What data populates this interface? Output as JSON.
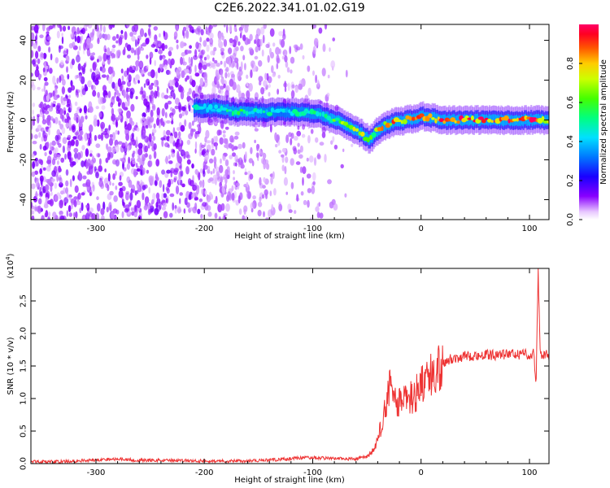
{
  "title": "C2E6.2022.341.01.02.G19",
  "colors": {
    "snr_line": "#ee3333",
    "axis": "#000000",
    "background": "#ffffff"
  },
  "chart_data": [
    {
      "type": "heatmap",
      "xlabel": "Height of straight line (km)",
      "ylabel": "Frequency (Hz)",
      "xlim": [
        -360,
        118
      ],
      "ylim": [
        -50,
        48
      ],
      "x_ticks": [
        -300,
        -200,
        -100,
        0,
        100
      ],
      "x_tick_labels": [
        "-300",
        "-200",
        "-100",
        "0",
        "100"
      ],
      "y_ticks": [
        -40,
        -20,
        0,
        20,
        40
      ],
      "y_tick_labels": [
        "-40",
        "-20",
        "0",
        "20",
        "40"
      ],
      "colorbar": {
        "label": "Normalized spectral amplitude",
        "range": [
          0,
          1
        ],
        "ticks": [
          0.0,
          0.2,
          0.4,
          0.6,
          0.8
        ],
        "tick_labels": [
          "0.0",
          "0.2",
          "0.4",
          "0.6",
          "0.8"
        ],
        "colormap": "rainbow (white-violet-blue-cyan-green-yellow-red-magenta)"
      },
      "ridge": {
        "x": [
          -210,
          -190,
          -170,
          -150,
          -130,
          -110,
          -95,
          -85,
          -75,
          -65,
          -55,
          -48,
          -42,
          -35,
          -25,
          -15,
          -5,
          0,
          10,
          20,
          40,
          60,
          80,
          100,
          110,
          118
        ],
        "y": [
          6,
          6,
          4,
          4,
          4,
          4,
          3,
          1,
          -1,
          -4,
          -7,
          -10,
          -6,
          -3,
          -1,
          0,
          1,
          2,
          1,
          0,
          0,
          0,
          0,
          0,
          0,
          0
        ],
        "amplitude": [
          0.45,
          0.5,
          0.55,
          0.5,
          0.45,
          0.5,
          0.5,
          0.55,
          0.65,
          0.75,
          0.75,
          0.6,
          0.7,
          0.85,
          0.85,
          0.8,
          0.9,
          0.9,
          0.9,
          0.95,
          0.95,
          0.95,
          0.95,
          0.95,
          0.9,
          0.85
        ]
      },
      "noise_extent_x": [
        -360,
        -80
      ],
      "grid": false
    },
    {
      "type": "line",
      "xlabel": "Height of straight line (km)",
      "ylabel": "SNR (10 * v/v)",
      "yscale_label": "(x10",
      "yscale_exponent": "4",
      "yscale_close": ")",
      "xlim": [
        -360,
        118
      ],
      "ylim": [
        0,
        3.0
      ],
      "x_ticks": [
        -300,
        -200,
        -100,
        0,
        100
      ],
      "x_tick_labels": [
        "-300",
        "-200",
        "-100",
        "0",
        "100"
      ],
      "y_ticks": [
        0.0,
        0.5,
        1.0,
        1.5,
        2.0,
        2.5
      ],
      "y_tick_labels": [
        "0.0",
        "0.5",
        "1.0",
        "1.5",
        "2.0",
        "2.5"
      ],
      "series": [
        {
          "x": [
            -360,
            -330,
            -300,
            -280,
            -260,
            -240,
            -200,
            -160,
            -130,
            -110,
            -100,
            -80,
            -60,
            -50,
            -42,
            -38,
            -34,
            -30,
            -26,
            -22,
            -18,
            -14,
            -10,
            -6,
            -2,
            0,
            5,
            10,
            15,
            20,
            25,
            30,
            40,
            50,
            60,
            70,
            80,
            90,
            100,
            104,
            106,
            108,
            110,
            112,
            118
          ],
          "y": [
            0.02,
            0.02,
            0.05,
            0.06,
            0.04,
            0.04,
            0.03,
            0.03,
            0.05,
            0.08,
            0.08,
            0.07,
            0.06,
            0.1,
            0.25,
            0.5,
            0.8,
            1.2,
            1.0,
            0.9,
            1.0,
            0.95,
            1.0,
            1.05,
            1.15,
            1.3,
            1.25,
            1.35,
            1.45,
            1.55,
            1.6,
            1.62,
            1.65,
            1.66,
            1.67,
            1.67,
            1.68,
            1.68,
            1.68,
            1.7,
            1.2,
            2.95,
            1.65,
            1.7,
            1.66
          ]
        }
      ],
      "grid": false
    }
  ]
}
